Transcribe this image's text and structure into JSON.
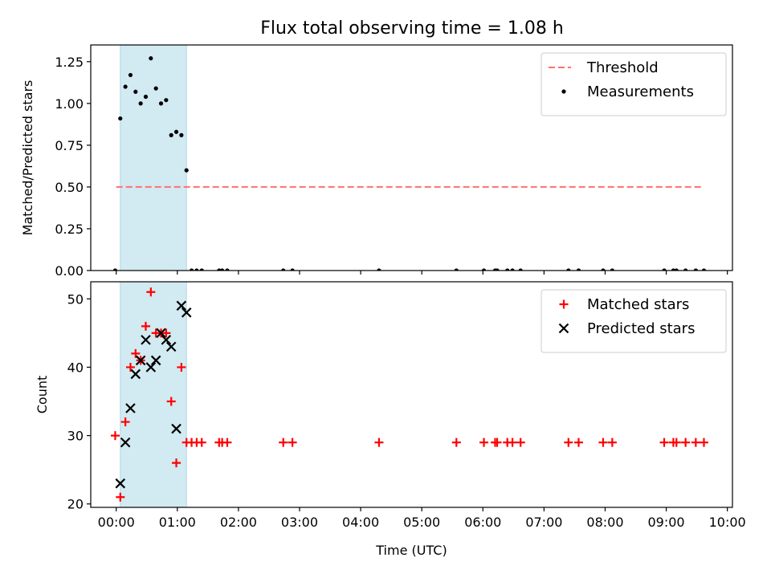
{
  "title": "Flux total observing time = 1.08 h",
  "chart_data": [
    {
      "type": "scatter",
      "title": "Flux total observing time = 1.08 h",
      "xlabel": "",
      "ylabel": "Matched/Predicted stars",
      "xlim": [
        "23:35",
        "10:05"
      ],
      "ylim": [
        0,
        1.35
      ],
      "x_ticks": [
        "00:00",
        "01:00",
        "02:00",
        "03:00",
        "04:00",
        "05:00",
        "06:00",
        "07:00",
        "08:00",
        "09:00",
        "10:00"
      ],
      "y_ticks": [
        "0.00",
        "0.25",
        "0.50",
        "0.75",
        "1.00",
        "1.25"
      ],
      "grid": false,
      "legend_position": "upper right",
      "shaded_interval": {
        "start": "00:04",
        "end": "01:09",
        "color": "#add8e6"
      },
      "threshold": {
        "name": "Threshold",
        "value": 0.5,
        "x_start": "00:00",
        "x_end": "09:35",
        "color": "#ff6f6f",
        "style": "dashed"
      },
      "series": [
        {
          "name": "Measurements",
          "color": "#000000",
          "marker": "dot",
          "points": [
            [
              "23:59",
              0.0
            ],
            [
              "00:04",
              0.91
            ],
            [
              "00:09",
              1.1
            ],
            [
              "00:14",
              1.17
            ],
            [
              "00:19",
              1.07
            ],
            [
              "00:24",
              1.0
            ],
            [
              "00:29",
              1.04
            ],
            [
              "00:34",
              1.27
            ],
            [
              "00:39",
              1.09
            ],
            [
              "00:44",
              1.0
            ],
            [
              "00:49",
              1.02
            ],
            [
              "00:54",
              0.81
            ],
            [
              "00:59",
              0.83
            ],
            [
              "01:04",
              0.81
            ],
            [
              "01:09",
              0.6
            ],
            [
              "01:14",
              0.0
            ],
            [
              "01:19",
              0.0
            ],
            [
              "01:24",
              0.0
            ],
            [
              "01:41",
              0.0
            ],
            [
              "01:44",
              0.0
            ],
            [
              "01:49",
              0.0
            ],
            [
              "02:44",
              0.0
            ],
            [
              "02:53",
              0.0
            ],
            [
              "04:18",
              0.0
            ],
            [
              "05:34",
              0.0
            ],
            [
              "06:01",
              0.0
            ],
            [
              "06:12",
              0.0
            ],
            [
              "06:14",
              0.0
            ],
            [
              "06:24",
              0.0
            ],
            [
              "06:29",
              0.0
            ],
            [
              "06:37",
              0.0
            ],
            [
              "07:24",
              0.0
            ],
            [
              "07:34",
              0.0
            ],
            [
              "07:58",
              0.0
            ],
            [
              "08:07",
              0.0
            ],
            [
              "08:58",
              0.0
            ],
            [
              "09:07",
              0.0
            ],
            [
              "09:10",
              0.0
            ],
            [
              "09:19",
              0.0
            ],
            [
              "09:29",
              0.0
            ],
            [
              "09:37",
              0.0
            ]
          ]
        }
      ]
    },
    {
      "type": "scatter",
      "title": "",
      "xlabel": "Time (UTC)",
      "ylabel": "Count",
      "xlim": [
        "23:35",
        "10:05"
      ],
      "ylim": [
        19.5,
        52.5
      ],
      "x_ticks": [
        "00:00",
        "01:00",
        "02:00",
        "03:00",
        "04:00",
        "05:00",
        "06:00",
        "07:00",
        "08:00",
        "09:00",
        "10:00"
      ],
      "y_ticks": [
        "20",
        "30",
        "40",
        "50"
      ],
      "grid": false,
      "legend_position": "upper right",
      "shaded_interval": {
        "start": "00:04",
        "end": "01:09",
        "color": "#add8e6"
      },
      "series": [
        {
          "name": "Matched stars",
          "color": "#ff0000",
          "marker": "plus",
          "points": [
            [
              "23:59",
              30
            ],
            [
              "00:04",
              21
            ],
            [
              "00:09",
              32
            ],
            [
              "00:14",
              40
            ],
            [
              "00:19",
              42
            ],
            [
              "00:24",
              41
            ],
            [
              "00:29",
              46
            ],
            [
              "00:34",
              51
            ],
            [
              "00:39",
              45
            ],
            [
              "00:44",
              45
            ],
            [
              "00:49",
              45
            ],
            [
              "00:54",
              35
            ],
            [
              "00:59",
              26
            ],
            [
              "01:04",
              40
            ],
            [
              "01:09",
              29
            ],
            [
              "01:14",
              29
            ],
            [
              "01:19",
              29
            ],
            [
              "01:24",
              29
            ],
            [
              "01:41",
              29
            ],
            [
              "01:44",
              29
            ],
            [
              "01:49",
              29
            ],
            [
              "02:44",
              29
            ],
            [
              "02:53",
              29
            ],
            [
              "04:18",
              29
            ],
            [
              "05:34",
              29
            ],
            [
              "06:01",
              29
            ],
            [
              "06:12",
              29
            ],
            [
              "06:14",
              29
            ],
            [
              "06:24",
              29
            ],
            [
              "06:29",
              29
            ],
            [
              "06:37",
              29
            ],
            [
              "07:24",
              29
            ],
            [
              "07:34",
              29
            ],
            [
              "07:58",
              29
            ],
            [
              "08:07",
              29
            ],
            [
              "08:58",
              29
            ],
            [
              "09:07",
              29
            ],
            [
              "09:10",
              29
            ],
            [
              "09:19",
              29
            ],
            [
              "09:29",
              29
            ],
            [
              "09:37",
              29
            ]
          ]
        },
        {
          "name": "Predicted stars",
          "color": "#000000",
          "marker": "x",
          "points": [
            [
              "00:04",
              23
            ],
            [
              "00:09",
              29
            ],
            [
              "00:14",
              34
            ],
            [
              "00:19",
              39
            ],
            [
              "00:24",
              41
            ],
            [
              "00:29",
              44
            ],
            [
              "00:34",
              40
            ],
            [
              "00:39",
              41
            ],
            [
              "00:44",
              45
            ],
            [
              "00:49",
              44
            ],
            [
              "00:54",
              43
            ],
            [
              "00:59",
              31
            ],
            [
              "01:04",
              49
            ],
            [
              "01:09",
              48
            ]
          ]
        }
      ]
    }
  ]
}
